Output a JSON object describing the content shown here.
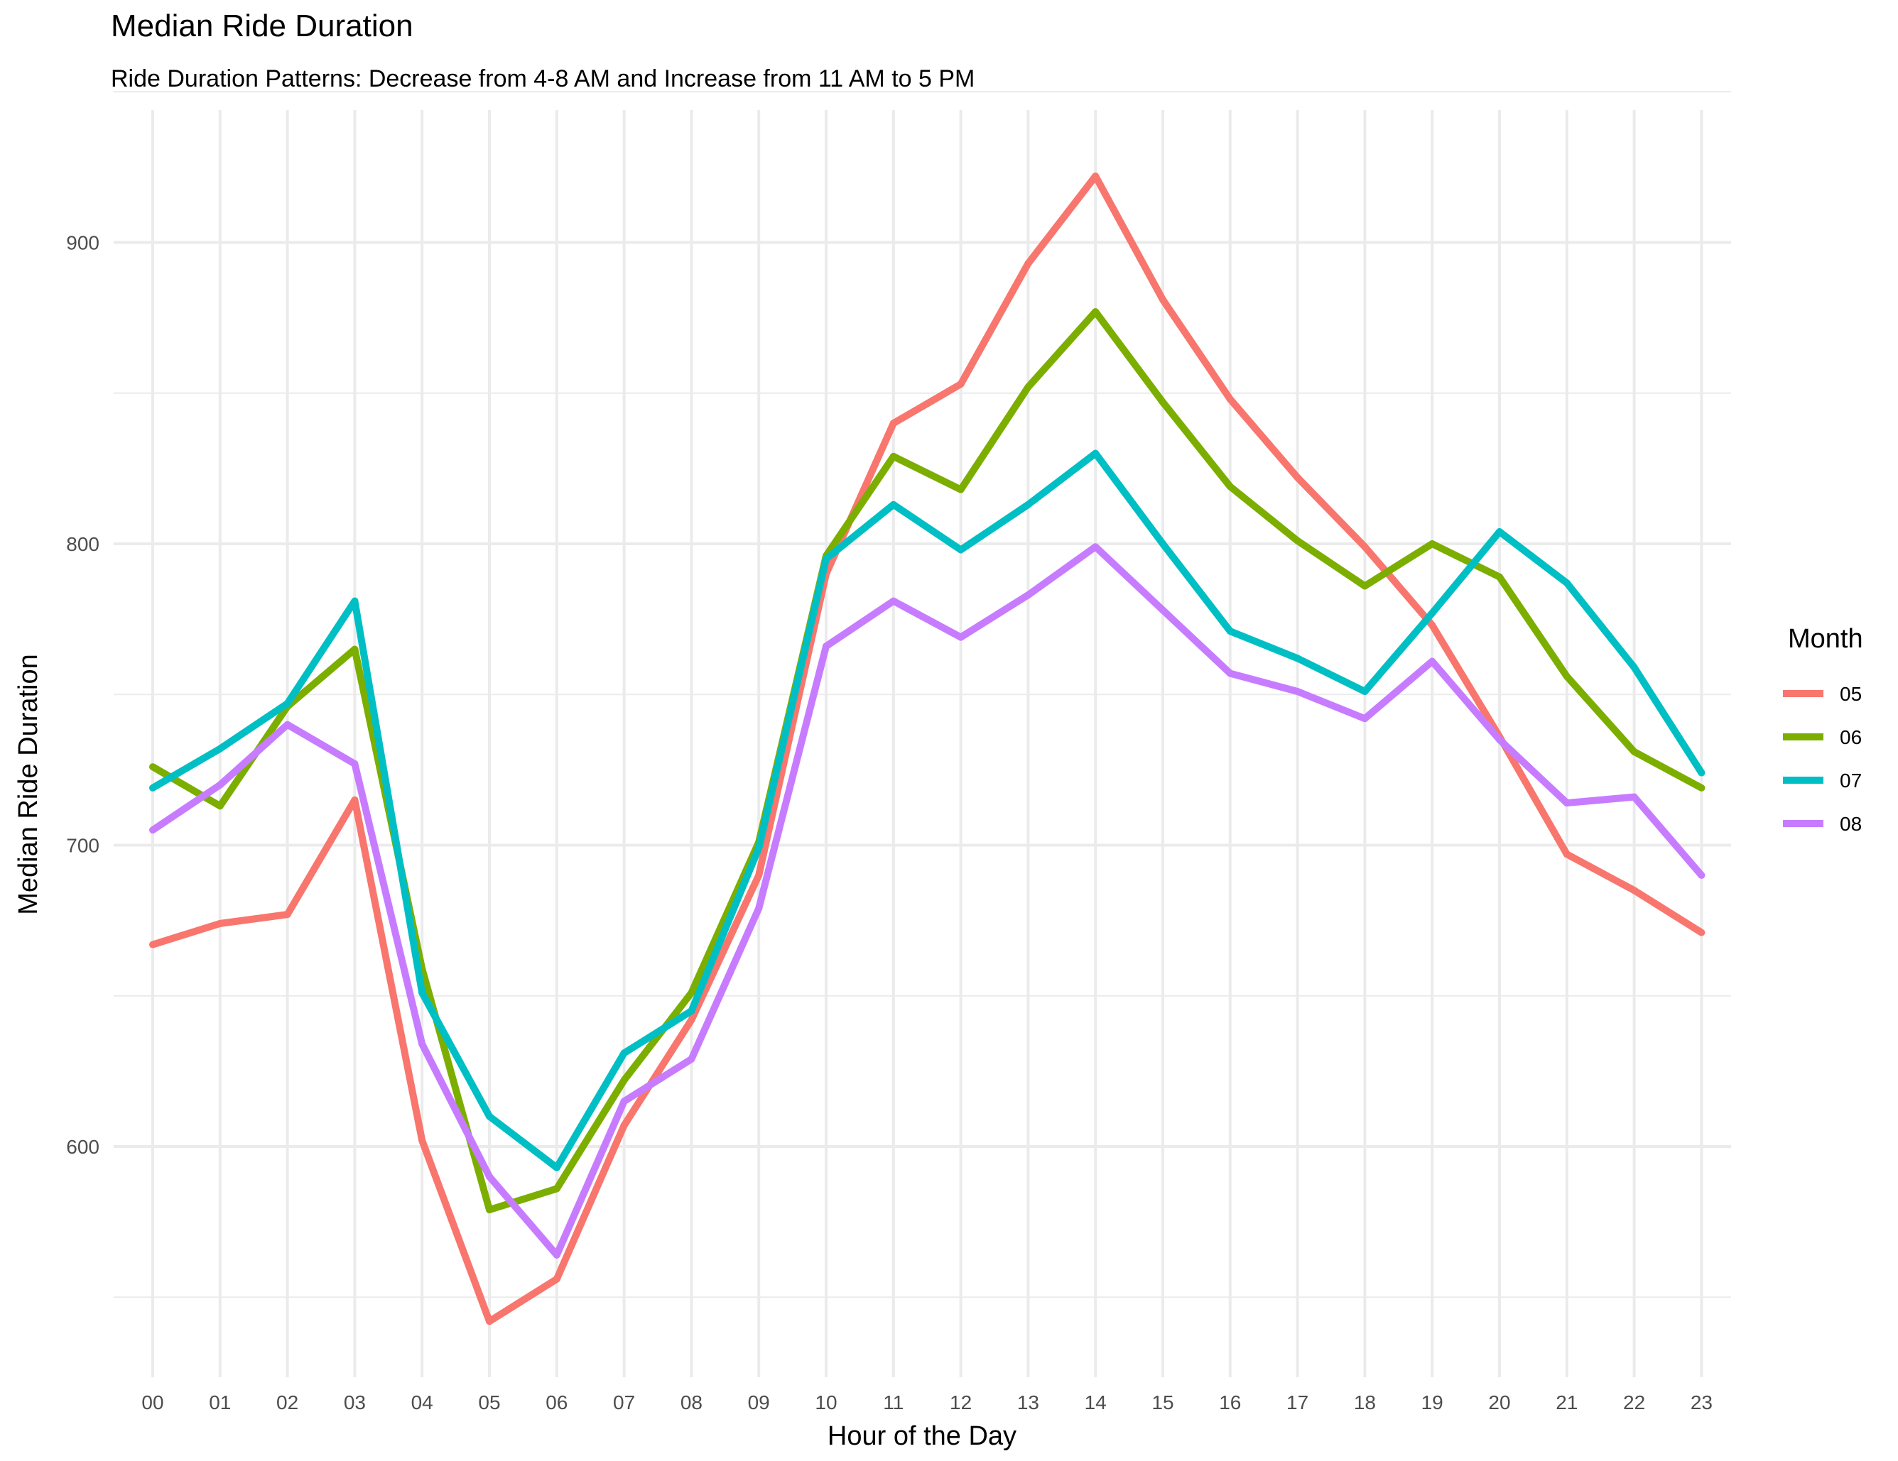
{
  "chart_data": {
    "type": "line",
    "title": "Median Ride Duration",
    "subtitle": "Ride Duration Patterns: Decrease from 4-8 AM and Increase from 11 AM to 5 PM",
    "xlabel": "Hour of the Day",
    "ylabel": "Median Ride Duration",
    "categories": [
      "00",
      "01",
      "02",
      "03",
      "04",
      "05",
      "06",
      "07",
      "08",
      "09",
      "10",
      "11",
      "12",
      "13",
      "14",
      "15",
      "16",
      "17",
      "18",
      "19",
      "20",
      "21",
      "22",
      "23"
    ],
    "y_ticks": [
      600,
      700,
      800,
      900
    ],
    "ylim": [
      535,
      935
    ],
    "grid": true,
    "legend": {
      "title": "Month",
      "position": "right"
    },
    "series": [
      {
        "name": "05",
        "color": "#F8766D",
        "values": [
          667,
          674,
          677,
          715,
          602,
          542,
          556,
          607,
          642,
          690,
          790,
          840,
          853,
          893,
          922,
          881,
          848,
          822,
          799,
          773,
          736,
          697,
          685,
          671
        ]
      },
      {
        "name": "06",
        "color": "#7CAE00",
        "values": [
          726,
          713,
          746,
          765,
          659,
          579,
          586,
          622,
          651,
          701,
          796,
          829,
          818,
          852,
          877,
          847,
          819,
          801,
          786,
          800,
          789,
          756,
          731,
          719
        ]
      },
      {
        "name": "07",
        "color": "#00BFC4",
        "values": [
          719,
          732,
          747,
          781,
          651,
          610,
          593,
          631,
          645,
          699,
          795,
          813,
          798,
          813,
          830,
          800,
          771,
          762,
          751,
          777,
          804,
          787,
          759,
          724
        ]
      },
      {
        "name": "08",
        "color": "#C77CFF",
        "values": [
          705,
          720,
          740,
          727,
          634,
          590,
          564,
          615,
          629,
          679,
          766,
          781,
          769,
          783,
          799,
          778,
          757,
          751,
          742,
          761,
          735,
          714,
          716,
          690
        ]
      }
    ]
  }
}
